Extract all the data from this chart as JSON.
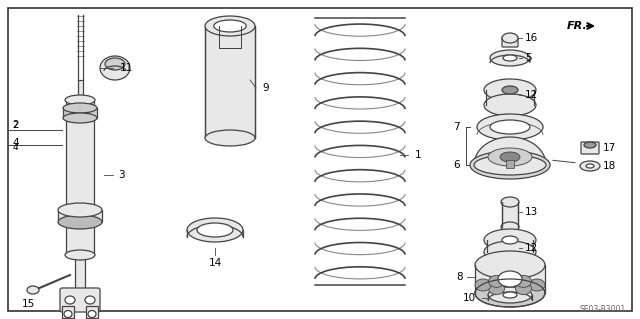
{
  "bg_color": "#ffffff",
  "border_color": "#555555",
  "line_color": "#444444",
  "part_fill": "#e8e8e8",
  "part_edge": "#444444",
  "part_number_label": "SE03-B3001",
  "fr_label": "FR.",
  "figsize": [
    6.4,
    3.19
  ],
  "dpi": 100
}
